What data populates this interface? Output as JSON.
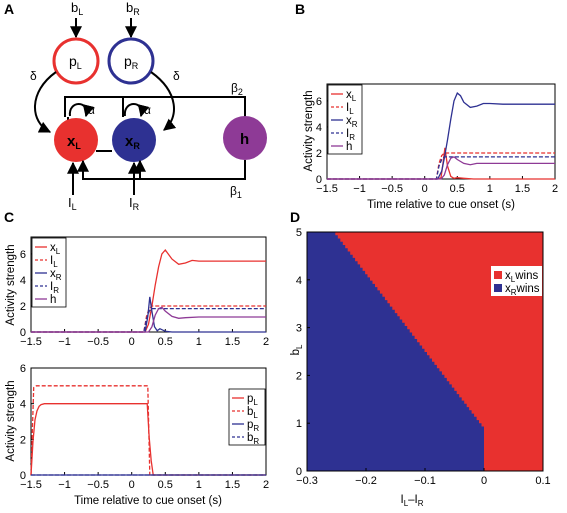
{
  "panels": {
    "a": "A",
    "b": "B",
    "c": "C",
    "d": "D"
  },
  "diagram": {
    "inputs": {
      "bL": "b",
      "bL_sub": "L",
      "bR": "b",
      "bR_sub": "R",
      "IL": "I",
      "IL_sub": "L",
      "IR": "I",
      "IR_sub": "R"
    },
    "nodes": {
      "pL": "p",
      "pL_sub": "L",
      "pR": "p",
      "pR_sub": "R",
      "xL": "x",
      "xL_sub": "L",
      "xR": "x",
      "xR_sub": "R",
      "h": "h"
    },
    "weights": {
      "delta": "δ",
      "alpha": "α",
      "beta": "β",
      "beta2_sub": "2",
      "beta1_sub": "1"
    },
    "colors": {
      "red": "#e8312f",
      "blue": "#2e3192",
      "purple": "#8e3a96"
    }
  },
  "labels": {
    "activity_strength": "Activity strength",
    "time_axis": "Time relative to cue onset (s)",
    "bL": "b",
    "bL_sub": "L",
    "IL_minus_IR": "I",
    "IL_minus_IR_mid": "L",
    "IL_minus_IR_dash": "–I",
    "IL_minus_IR_sub2": "R"
  },
  "legends": {
    "x_legend": [
      {
        "base": "x",
        "sub": "L",
        "style": "solid",
        "color": "#e8312f"
      },
      {
        "base": "I",
        "sub": "L",
        "style": "dashed",
        "color": "#e8312f"
      },
      {
        "base": "x",
        "sub": "R",
        "style": "solid",
        "color": "#2e3192"
      },
      {
        "base": "I",
        "sub": "R",
        "style": "dashed",
        "color": "#2e3192"
      },
      {
        "base": "h",
        "sub": "",
        "style": "solid",
        "color": "#8e3a96"
      }
    ],
    "p_legend": [
      {
        "base": "p",
        "sub": "L",
        "style": "solid",
        "color": "#e8312f"
      },
      {
        "base": "b",
        "sub": "L",
        "style": "dashed",
        "color": "#e8312f"
      },
      {
        "base": "p",
        "sub": "R",
        "style": "solid",
        "color": "#2e3192"
      },
      {
        "base": "b",
        "sub": "R",
        "style": "dashed",
        "color": "#2e3192"
      }
    ],
    "d_legend": [
      {
        "base": "x",
        "sub": "L",
        "tail": "wins",
        "color": "#e8312f"
      },
      {
        "base": "x",
        "sub": "R",
        "tail": "wins",
        "color": "#2e3192"
      }
    ]
  },
  "chart_data": [
    {
      "id": "B",
      "type": "line",
      "xlim": [
        -1.5,
        2
      ],
      "ylim": [
        0,
        7.3
      ],
      "xticks": [
        "-1.5",
        "-1",
        "-0.5",
        "0",
        "0.5",
        "1",
        "1.5",
        "2"
      ],
      "yticks": [
        "0",
        "2",
        "4",
        "6"
      ],
      "series": [
        {
          "name": "xL",
          "color": "#e8312f",
          "style": "solid",
          "x": [
            -1.5,
            0.2,
            0.25,
            0.28,
            0.31,
            0.35,
            0.4,
            0.45,
            0.5,
            0.6,
            0.75,
            1.0,
            2.0
          ],
          "y": [
            0,
            0,
            0.1,
            1.2,
            2.4,
            1.0,
            0.2,
            0.05,
            0.1,
            0.05,
            0.0,
            0.0,
            0.0
          ]
        },
        {
          "name": "IL",
          "color": "#e8312f",
          "style": "dashed",
          "x": [
            -1.5,
            0.18,
            0.22,
            0.26,
            0.3,
            2.0
          ],
          "y": [
            0,
            0,
            1.2,
            1.8,
            2.0,
            2.0
          ]
        },
        {
          "name": "xR",
          "color": "#2e3192",
          "style": "solid",
          "x": [
            -1.5,
            0.2,
            0.26,
            0.3,
            0.35,
            0.4,
            0.45,
            0.5,
            0.55,
            0.6,
            0.7,
            0.8,
            0.9,
            1.0,
            1.2,
            2.0
          ],
          "y": [
            0,
            0,
            0.6,
            1.6,
            3.0,
            4.6,
            6.0,
            6.6,
            6.4,
            5.9,
            5.5,
            5.6,
            5.8,
            5.8,
            5.75,
            5.75
          ]
        },
        {
          "name": "IR",
          "color": "#2e3192",
          "style": "dashed",
          "x": [
            -1.5,
            0.18,
            0.22,
            0.26,
            0.3,
            2.0
          ],
          "y": [
            0,
            0,
            1.0,
            1.5,
            1.7,
            1.7
          ]
        },
        {
          "name": "h",
          "color": "#8e3a96",
          "style": "solid",
          "x": [
            -1.5,
            0.25,
            0.3,
            0.35,
            0.4,
            0.45,
            0.5,
            0.6,
            0.7,
            0.8,
            1.0,
            2.0
          ],
          "y": [
            0,
            0,
            0.3,
            1.1,
            1.6,
            1.7,
            1.5,
            1.2,
            1.1,
            1.2,
            1.2,
            1.2
          ]
        }
      ]
    },
    {
      "id": "C-top",
      "type": "line",
      "xlim": [
        -1.5,
        2
      ],
      "ylim": [
        0,
        7.3
      ],
      "xticks": [
        "-1.5",
        "-1",
        "-0.5",
        "0",
        "0.5",
        "1",
        "1.5",
        "2"
      ],
      "yticks": [
        "0",
        "2",
        "4",
        "6"
      ],
      "series": [
        {
          "name": "xL",
          "color": "#e8312f",
          "style": "solid",
          "x": [
            -1.5,
            0.2,
            0.25,
            0.3,
            0.35,
            0.4,
            0.45,
            0.5,
            0.6,
            0.7,
            0.8,
            0.9,
            1.0,
            1.2,
            2.0
          ],
          "y": [
            0,
            0,
            0.6,
            2.0,
            3.6,
            5.0,
            6.0,
            6.3,
            5.6,
            5.2,
            5.3,
            5.5,
            5.45,
            5.45,
            5.45
          ]
        },
        {
          "name": "IL",
          "color": "#e8312f",
          "style": "dashed",
          "x": [
            -1.5,
            0.18,
            0.22,
            0.26,
            0.3,
            2.0
          ],
          "y": [
            0,
            0,
            1.2,
            1.8,
            2.0,
            2.0
          ]
        },
        {
          "name": "xR",
          "color": "#2e3192",
          "style": "solid",
          "x": [
            -1.5,
            0.2,
            0.24,
            0.27,
            0.3,
            0.34,
            0.38,
            0.42,
            0.5,
            0.6,
            0.8,
            2.0
          ],
          "y": [
            0,
            0,
            1.2,
            2.7,
            1.6,
            0.4,
            0.1,
            0.25,
            0.05,
            0.0,
            0.0,
            0.0
          ]
        },
        {
          "name": "IR",
          "color": "#2e3192",
          "style": "dashed",
          "x": [
            -1.5,
            0.18,
            0.22,
            0.26,
            0.3,
            2.0
          ],
          "y": [
            0,
            0,
            1.0,
            1.6,
            1.8,
            1.8
          ]
        },
        {
          "name": "h",
          "color": "#8e3a96",
          "style": "solid",
          "x": [
            -1.5,
            0.25,
            0.3,
            0.35,
            0.4,
            0.45,
            0.5,
            0.6,
            0.7,
            0.8,
            1.0,
            2.0
          ],
          "y": [
            0,
            0,
            0.4,
            1.3,
            1.8,
            1.9,
            1.6,
            1.2,
            1.05,
            1.1,
            1.15,
            1.15
          ]
        }
      ]
    },
    {
      "id": "C-bottom",
      "type": "line",
      "xlim": [
        -1.5,
        2
      ],
      "ylim": [
        0,
        6
      ],
      "xticks": [
        "-1.5",
        "-1",
        "-0.5",
        "0",
        "0.5",
        "1",
        "1.5",
        "2"
      ],
      "yticks": [
        "0",
        "2",
        "4",
        "6"
      ],
      "series": [
        {
          "name": "pL",
          "color": "#e8312f",
          "style": "solid",
          "x": [
            -1.5,
            -1.47,
            -1.44,
            -1.41,
            -1.38,
            -1.35,
            -1.3,
            0.23,
            0.26,
            0.29,
            0.32,
            2.0
          ],
          "y": [
            0,
            1.9,
            3.1,
            3.6,
            3.85,
            3.95,
            4.0,
            4.0,
            2.1,
            0.8,
            0.0,
            0.0
          ]
        },
        {
          "name": "bL",
          "color": "#e8312f",
          "style": "dashed",
          "x": [
            -1.5,
            -1.46,
            -1.42,
            0.24,
            0.27,
            2.0
          ],
          "y": [
            0,
            4.9,
            5.0,
            5.0,
            0,
            0
          ]
        },
        {
          "name": "pR",
          "color": "#2e3192",
          "style": "solid",
          "x": [
            -1.5,
            2.0
          ],
          "y": [
            0,
            0
          ]
        },
        {
          "name": "bR",
          "color": "#2e3192",
          "style": "dashed",
          "x": [
            -1.5,
            2.0
          ],
          "y": [
            0,
            0
          ]
        }
      ]
    },
    {
      "id": "D",
      "type": "heatmap",
      "xlim": [
        -0.3,
        0.1
      ],
      "ylim": [
        0,
        5
      ],
      "xticks": [
        "-0.3",
        "-0.2",
        "-0.1",
        "0",
        "0.1"
      ],
      "yticks": [
        "0",
        "1",
        "2",
        "3",
        "4",
        "5"
      ],
      "xlabel": "IL–IR",
      "ylabel": "bL",
      "boundary": {
        "x_at_top": [
          -0.252,
          5.0
        ],
        "x_at_bottom": [
          0.0,
          0.93
        ],
        "vertical_until": 0
      },
      "regions": [
        {
          "name": "xL wins",
          "color": "#e8312f"
        },
        {
          "name": "xR wins",
          "color": "#2e3192"
        }
      ]
    }
  ]
}
